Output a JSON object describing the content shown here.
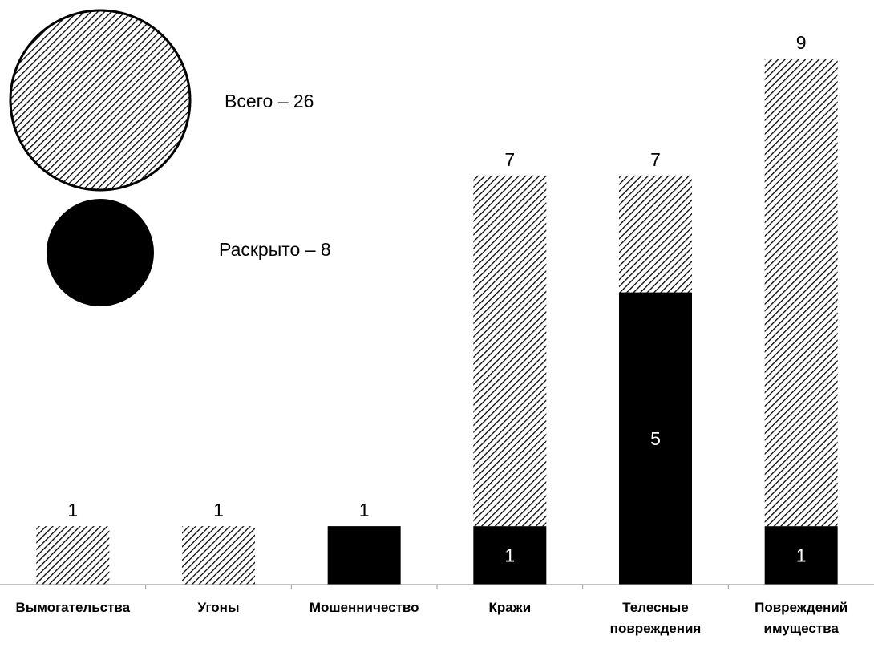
{
  "chart_data": {
    "type": "bar",
    "stacked": true,
    "categories": [
      [
        "Вымогательства"
      ],
      [
        "Угоны"
      ],
      [
        "Мошенничество"
      ],
      [
        "Кражи"
      ],
      [
        "Телесные",
        "повреждения"
      ],
      [
        "Повреждений",
        "имущества"
      ]
    ],
    "series": [
      {
        "key": "solved",
        "values": [
          0,
          0,
          1,
          1,
          5,
          1
        ],
        "fill": "solid"
      },
      {
        "key": "unsolved",
        "values": [
          1,
          1,
          0,
          6,
          2,
          8
        ],
        "fill": "hatch"
      }
    ],
    "totals": [
      1,
      1,
      1,
      7,
      7,
      9
    ],
    "inner_labels": [
      null,
      null,
      null,
      "1",
      "5",
      "1"
    ],
    "total_labels": [
      "1",
      "1",
      "1",
      "7",
      "7",
      "9"
    ],
    "ylim": [
      0,
      9
    ],
    "grid": false,
    "legend": {
      "placement": "top-left",
      "total_text": "Всего – 26",
      "solved_text": "Раскрыто – 8"
    },
    "colors": {
      "bar": "#000000",
      "background": "#ffffff",
      "inner_text": "#ffffff"
    }
  }
}
